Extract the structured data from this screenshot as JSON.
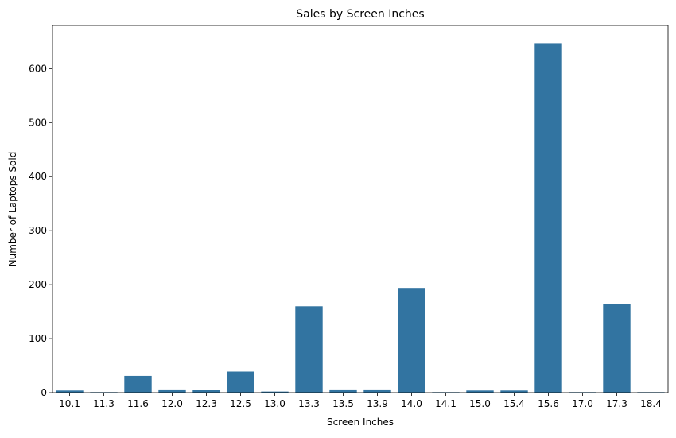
{
  "chart_data": {
    "type": "bar",
    "title": "Sales by Screen Inches",
    "xlabel": "Screen Inches",
    "ylabel": "Number of Laptops Sold",
    "categories": [
      "10.1",
      "11.3",
      "11.6",
      "12.0",
      "12.3",
      "12.5",
      "13.0",
      "13.3",
      "13.5",
      "13.9",
      "14.0",
      "14.1",
      "15.0",
      "15.4",
      "15.6",
      "17.0",
      "17.3",
      "18.4"
    ],
    "values": [
      4,
      1,
      31,
      6,
      5,
      39,
      2,
      160,
      6,
      6,
      194,
      1,
      4,
      4,
      647,
      1,
      164,
      1
    ],
    "ylim": [
      0,
      680
    ],
    "yticks": [
      0,
      100,
      200,
      300,
      400,
      500,
      600
    ],
    "grid": false,
    "bar_color": "#3274a1"
  }
}
